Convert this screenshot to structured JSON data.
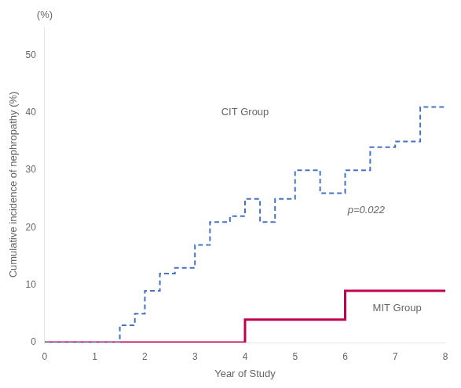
{
  "chart_data": {
    "type": "line",
    "xlabel": "Year of Study",
    "ylabel": "Cumulative incidence of nephropathy (%)",
    "xlim": [
      0,
      8
    ],
    "ylim": [
      0,
      55
    ],
    "xticks": [
      0,
      1,
      2,
      3,
      4,
      5,
      6,
      7,
      8
    ],
    "yticks": [
      0,
      10,
      20,
      30,
      40,
      50
    ],
    "grid": false,
    "series": [
      {
        "color": "#4472C4",
        "line_style": "dashed",
        "x": [
          0,
          1.5,
          1.5,
          1.8,
          1.8,
          2.0,
          2.0,
          2.3,
          2.3,
          2.6,
          2.6,
          3.0,
          3.0,
          3.3,
          3.3,
          3.7,
          3.7,
          4.0,
          4.0,
          4.3,
          4.3,
          4.6,
          4.6,
          5.0,
          5.0,
          5.5,
          5.5,
          6.0,
          6.0,
          6.5,
          6.5,
          7.0,
          7.0,
          7.5,
          7.5,
          8.0
        ],
        "values": [
          0,
          0,
          3,
          3,
          5,
          5,
          9,
          9,
          12,
          12,
          13,
          13,
          17,
          17,
          21,
          21,
          22,
          22,
          25,
          25,
          21,
          21,
          25,
          25,
          30,
          30,
          26,
          26,
          30,
          30,
          34,
          34,
          35,
          35,
          41,
          41
        ]
      },
      {
        "color": "#C00050",
        "line_style": "solid",
        "x": [
          0,
          4.0,
          4.0,
          6.0,
          6.0,
          8.0
        ],
        "values": [
          0,
          0,
          4,
          4,
          9,
          9
        ]
      }
    ],
    "annotations": [
      {
        "text": "CIT Group",
        "x": 4.0,
        "y": 40
      },
      {
        "text": "MIT Group",
        "x": 6.55,
        "y": 6
      },
      {
        "text": "p=0.022",
        "x": 6.05,
        "y": 23
      },
      {
        "text": "(%)"
      }
    ]
  }
}
